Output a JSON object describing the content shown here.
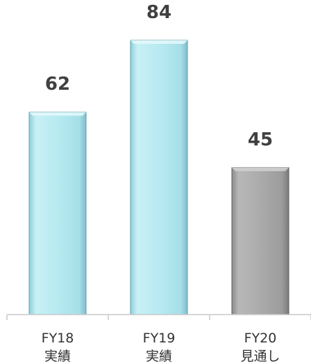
{
  "chart_data": {
    "type": "bar",
    "categories": [
      [
        "FY18",
        "実績"
      ],
      [
        "FY19",
        "実績"
      ],
      [
        "FY20",
        "見通し"
      ]
    ],
    "values": [
      62,
      84,
      45
    ],
    "data_labels": [
      "62",
      "84",
      "45"
    ],
    "bar_colors": [
      "#b4e6ee",
      "#b4e6ee",
      "#a8a8a8"
    ],
    "title": "",
    "xlabel": "",
    "ylabel": "",
    "ylim": [
      0,
      84
    ],
    "grid": false,
    "legend": "none"
  }
}
